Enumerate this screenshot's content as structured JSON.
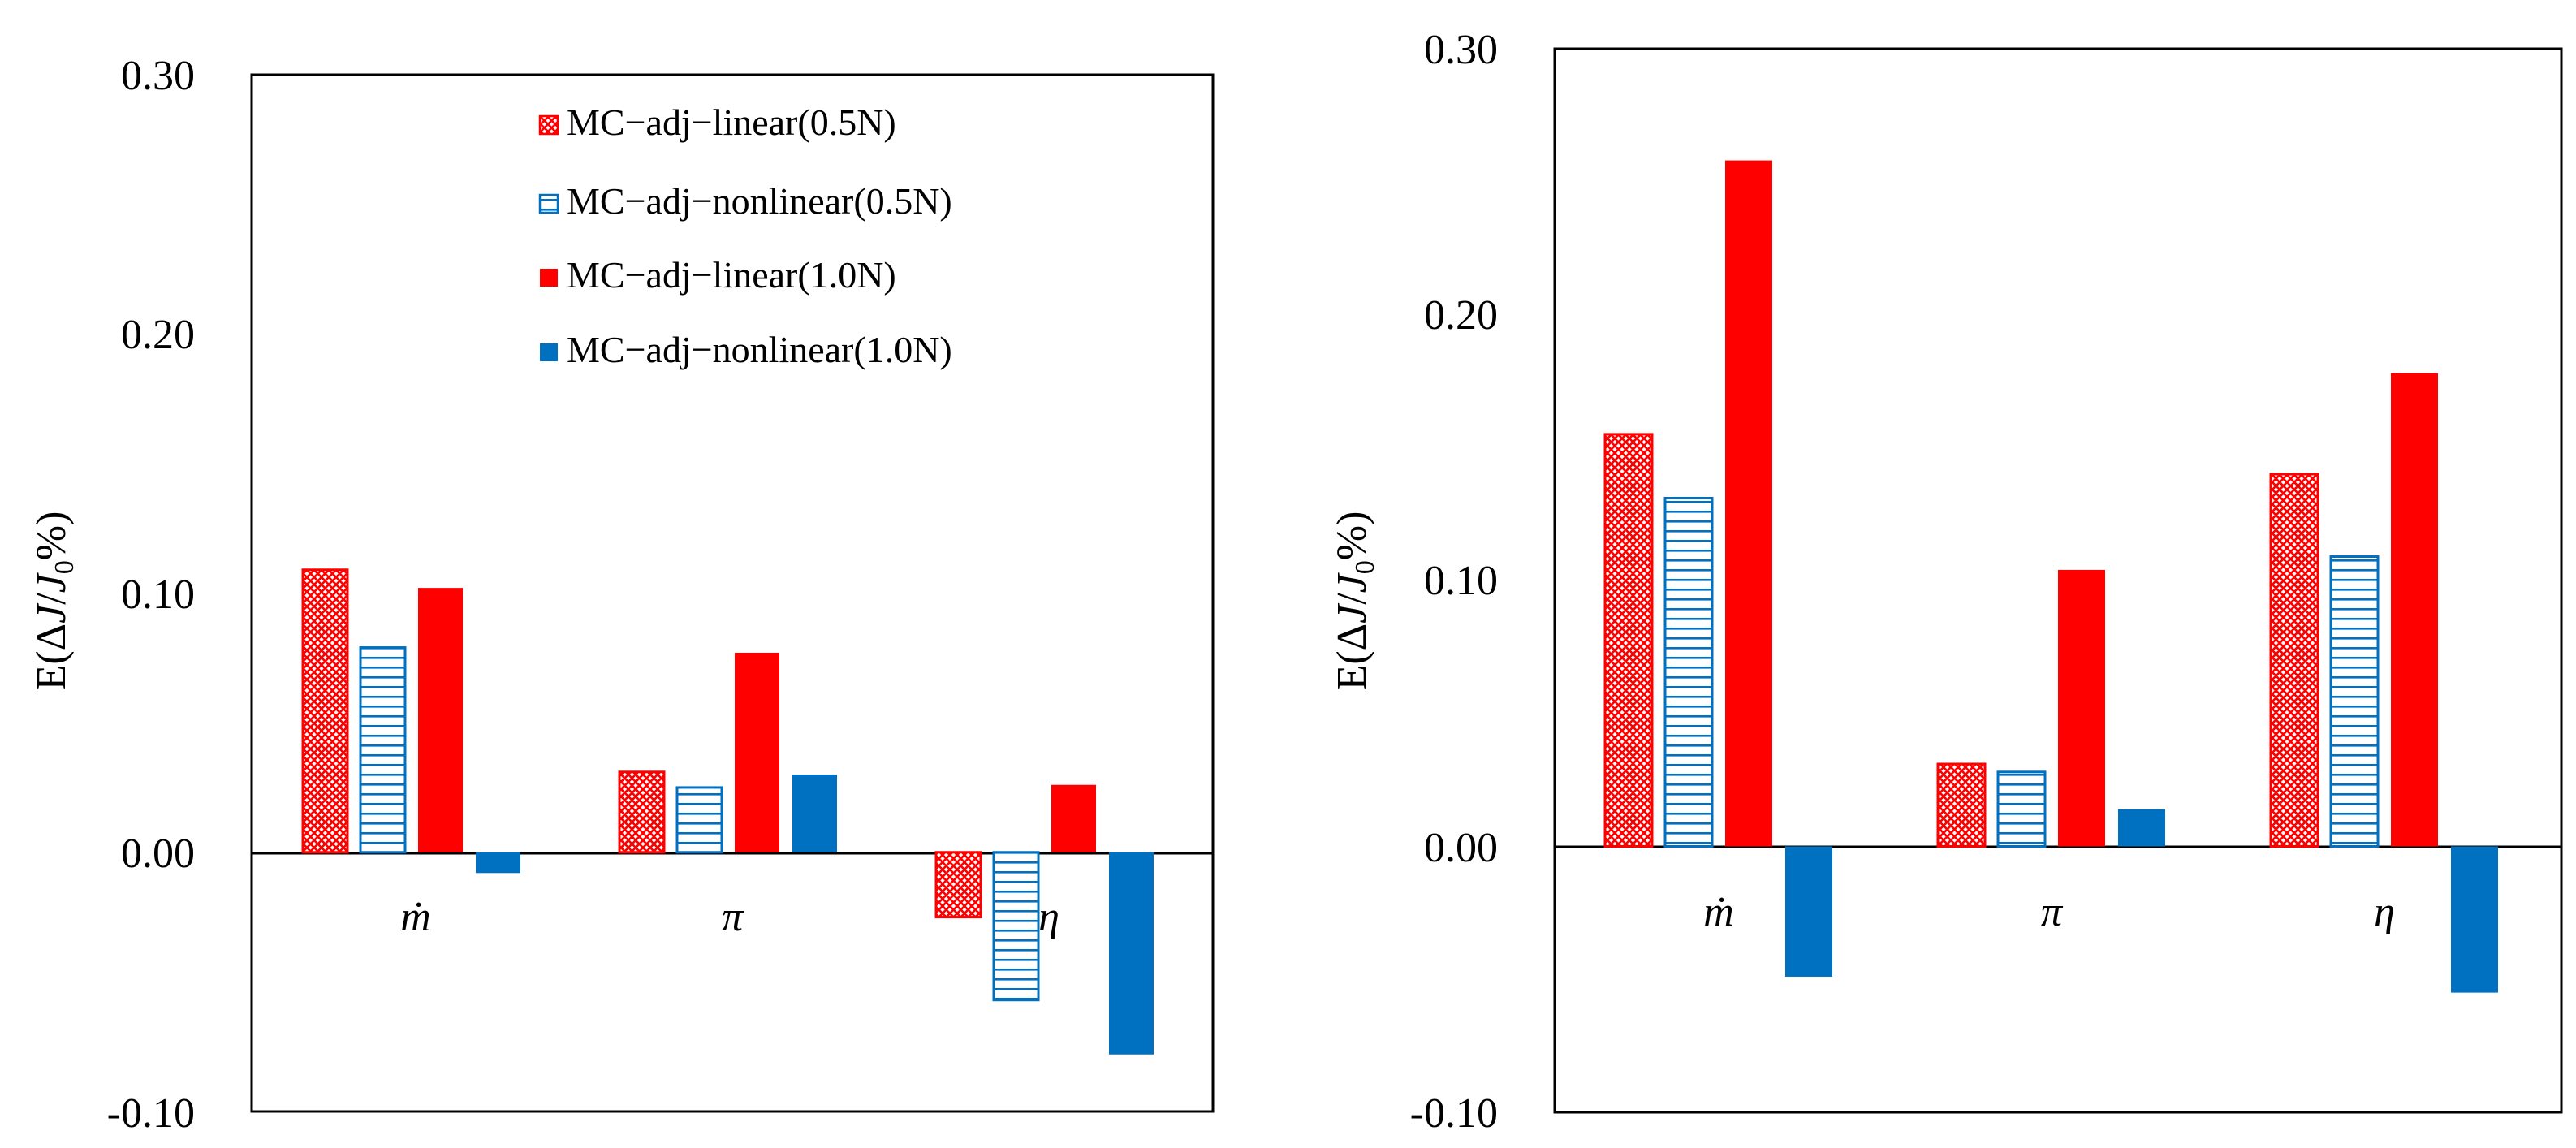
{
  "colors": {
    "linear_05": "#ff0000",
    "nonlinear_05": "#0070c0",
    "linear_10": "#ff0000",
    "nonlinear_10": "#0070c0"
  },
  "chart_data": [
    {
      "type": "bar",
      "ylabel_prefix": "E(",
      "ylabel_delta": "Δ",
      "ylabel_j": "J",
      "ylabel_slash": "/",
      "ylabel_j0": "J",
      "ylabel_sub": "0",
      "ylabel_suffix": "%)",
      "ylim": [
        -0.1,
        0.3
      ],
      "yticks": [
        "0.30",
        "0.20",
        "0.10",
        "0.00",
        "-0.10"
      ],
      "ytick_values": [
        0.3,
        0.2,
        0.1,
        0.0,
        -0.1
      ],
      "categories": [
        "ṁ",
        "π",
        "η"
      ],
      "legend_position": "top-right",
      "series": [
        {
          "name": "MC−adj−linear(0.5N)",
          "style": "crosshatch-red",
          "values": [
            0.109,
            0.031,
            -0.025
          ]
        },
        {
          "name": "MC−adj−nonlinear(0.5N)",
          "style": "hlines-blue",
          "values": [
            0.079,
            0.025,
            -0.057
          ]
        },
        {
          "name": "MC−adj−linear(1.0N)",
          "style": "solid-red",
          "values": [
            0.102,
            0.077,
            0.026
          ]
        },
        {
          "name": "MC−adj−nonlinear(1.0N)",
          "style": "solid-blue",
          "values": [
            -0.008,
            0.03,
            -0.078
          ]
        }
      ]
    },
    {
      "type": "bar",
      "ylabel_prefix": "E(",
      "ylabel_delta": "Δ",
      "ylabel_j": "J",
      "ylabel_slash": "/",
      "ylabel_j0": "J",
      "ylabel_sub": "0",
      "ylabel_suffix": "%)",
      "ylim": [
        -0.1,
        0.3
      ],
      "yticks": [
        "0.30",
        "0.20",
        "0.10",
        "0.00",
        "-0.10"
      ],
      "ytick_values": [
        0.3,
        0.2,
        0.1,
        0.0,
        -0.1
      ],
      "categories": [
        "ṁ",
        "π",
        "η"
      ],
      "series": [
        {
          "name": "MC−adj−linear(0.5N)",
          "style": "crosshatch-red",
          "values": [
            0.155,
            0.031,
            0.14
          ]
        },
        {
          "name": "MC−adj−nonlinear(0.5N)",
          "style": "hlines-blue",
          "values": [
            0.131,
            0.028,
            0.109
          ]
        },
        {
          "name": "MC−adj−linear(1.0N)",
          "style": "solid-red",
          "values": [
            0.258,
            0.104,
            0.178
          ]
        },
        {
          "name": "MC−adj−nonlinear(1.0N)",
          "style": "solid-blue",
          "values": [
            -0.049,
            0.014,
            -0.055
          ]
        }
      ]
    }
  ]
}
